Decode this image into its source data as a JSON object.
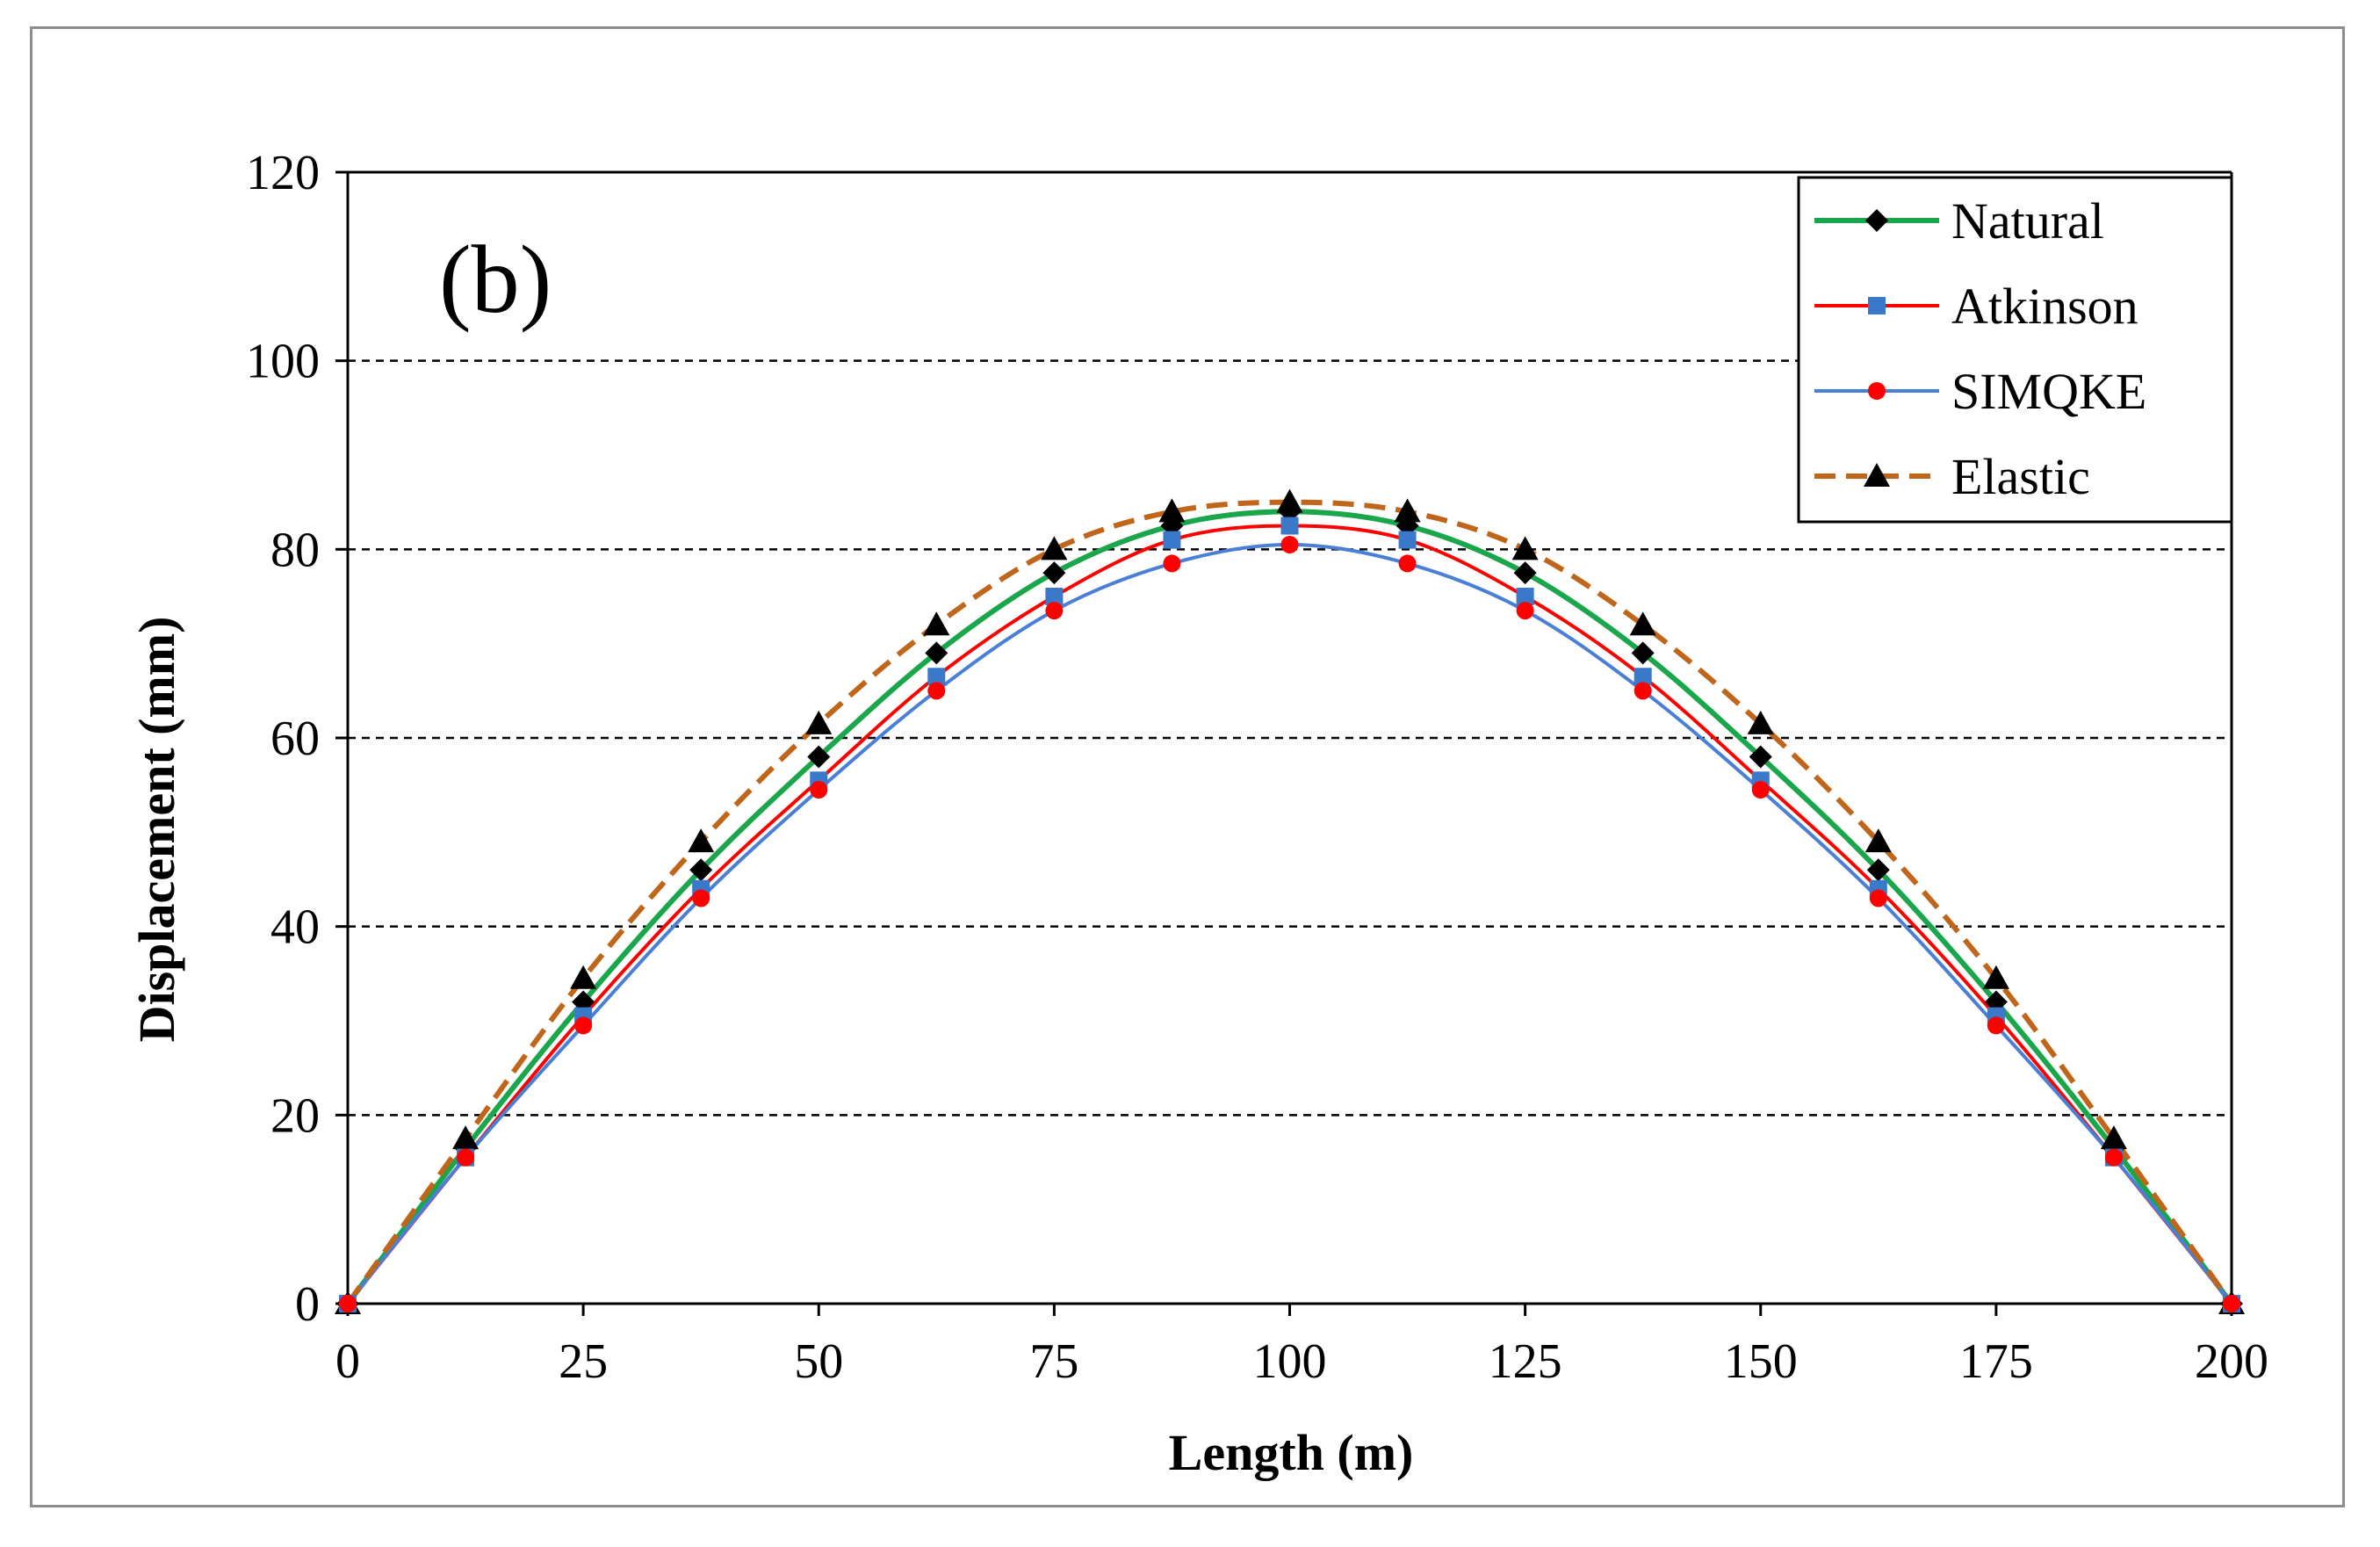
{
  "chart_data": {
    "type": "line",
    "panel_label": "(b)",
    "xlabel": "Length (m)",
    "ylabel": "Displacement  (mm)",
    "xlim": [
      0,
      200
    ],
    "ylim": [
      0,
      120
    ],
    "xticks": [
      0,
      25,
      50,
      75,
      100,
      125,
      150,
      175,
      200
    ],
    "yticks": [
      0,
      20,
      40,
      60,
      80,
      100,
      120
    ],
    "grid": "horizontal-dashed",
    "legend_position": "top-right",
    "x": [
      0,
      12.5,
      25,
      37.5,
      50,
      62.5,
      75,
      87.5,
      100,
      112.5,
      125,
      137.5,
      150,
      162.5,
      175,
      187.5,
      200
    ],
    "series": [
      {
        "name": "Natural",
        "color": "#1aa64b",
        "marker": "diamond",
        "marker_color": "#000000",
        "line_style": "solid",
        "values": [
          0,
          16.5,
          32,
          46,
          58,
          69,
          77.5,
          82.5,
          84,
          82.5,
          77.5,
          69,
          58,
          46,
          32,
          16.5,
          0
        ]
      },
      {
        "name": "Atkinson",
        "color": "#ff0000",
        "marker": "square",
        "marker_color": "#3a78c9",
        "line_style": "solid",
        "values": [
          0,
          15.5,
          30.5,
          44,
          55.5,
          66.5,
          75,
          81,
          82.5,
          81,
          75,
          66.5,
          55.5,
          44,
          30.5,
          15.5,
          0
        ]
      },
      {
        "name": "SIMQKE",
        "color": "#4a7fd6",
        "marker": "circle",
        "marker_color": "#ff0000",
        "line_style": "solid",
        "values": [
          0,
          15.5,
          29.5,
          43,
          54.5,
          65,
          73.5,
          78.5,
          80.5,
          78.5,
          73.5,
          65,
          54.5,
          43,
          29.5,
          15.5,
          0
        ]
      },
      {
        "name": "Elastic",
        "color": "#c0661a",
        "marker": "triangle",
        "marker_color": "#000000",
        "line_style": "dashed",
        "values": [
          0,
          17.5,
          34.5,
          49,
          61.5,
          72,
          80,
          84,
          85,
          84,
          80,
          72,
          61.5,
          49,
          34.5,
          17.5,
          0
        ]
      }
    ]
  },
  "colors": {
    "frame_border": "#8c8c8c",
    "grid": "#000000",
    "axis": "#000000"
  }
}
